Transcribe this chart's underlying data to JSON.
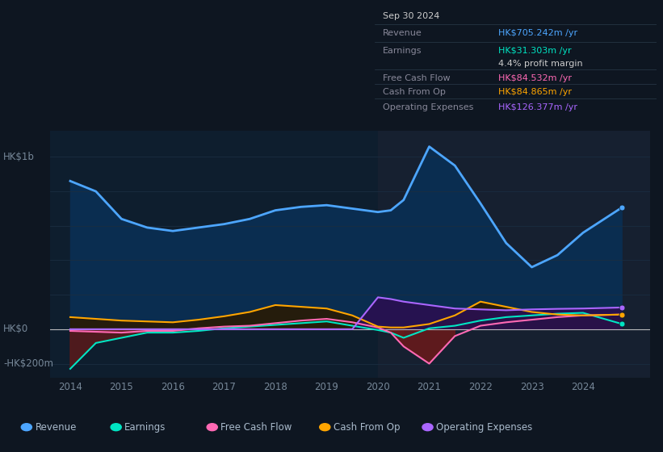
{
  "bg_color": "#0e1621",
  "plot_bg_color": "#0e1e2e",
  "years": [
    2014,
    2014.5,
    2015,
    2015.5,
    2016,
    2016.5,
    2017,
    2017.5,
    2018,
    2018.5,
    2019,
    2019.5,
    2020,
    2020.25,
    2020.5,
    2021,
    2021.5,
    2022,
    2022.5,
    2023,
    2023.5,
    2024,
    2024.75
  ],
  "revenue": [
    860,
    800,
    640,
    590,
    570,
    590,
    610,
    640,
    690,
    710,
    720,
    700,
    680,
    690,
    750,
    1060,
    950,
    730,
    500,
    360,
    430,
    560,
    705
  ],
  "earnings": [
    -230,
    -80,
    -50,
    -20,
    -20,
    -10,
    5,
    15,
    25,
    35,
    45,
    20,
    -5,
    -20,
    -50,
    5,
    20,
    50,
    70,
    80,
    90,
    95,
    31
  ],
  "free_cash_flow": [
    -10,
    -15,
    -20,
    -10,
    -10,
    5,
    15,
    20,
    35,
    50,
    60,
    40,
    10,
    -20,
    -100,
    -200,
    -40,
    20,
    40,
    55,
    70,
    80,
    85
  ],
  "cash_from_op": [
    70,
    60,
    50,
    45,
    40,
    55,
    75,
    100,
    140,
    130,
    120,
    80,
    15,
    10,
    10,
    30,
    80,
    160,
    130,
    100,
    85,
    80,
    85
  ],
  "operating_expenses": [
    0,
    0,
    0,
    0,
    0,
    0,
    0,
    0,
    0,
    0,
    0,
    0,
    185,
    175,
    160,
    140,
    120,
    115,
    110,
    115,
    118,
    120,
    126
  ],
  "info_box": {
    "date": "Sep 30 2024",
    "revenue_label": "Revenue",
    "revenue_val": "HK$705.242m",
    "earnings_label": "Earnings",
    "earnings_val": "HK$31.303m",
    "profit_margin": "4.4% profit margin",
    "fcf_label": "Free Cash Flow",
    "fcf_val": "HK$84.532m",
    "cash_op_label": "Cash From Op",
    "cash_op_val": "HK$84.865m",
    "op_exp_label": "Operating Expenses",
    "op_exp_val": "HK$126.377m",
    "revenue_color": "#4da6ff",
    "earnings_color": "#00e5c3",
    "fcf_color": "#ff69b4",
    "cash_op_color": "#ffa500",
    "op_exp_color": "#aa66ff",
    "label_color": "#888899",
    "date_color": "#cccccc",
    "margin_color": "#cccccc",
    "box_bg": "#070d14",
    "box_border": "#2a3a4a"
  },
  "legend": [
    {
      "label": "Revenue",
      "color": "#4da6ff"
    },
    {
      "label": "Earnings",
      "color": "#00e5c3"
    },
    {
      "label": "Free Cash Flow",
      "color": "#ff69b4"
    },
    {
      "label": "Cash From Op",
      "color": "#ffa500"
    },
    {
      "label": "Operating Expenses",
      "color": "#aa66ff"
    }
  ],
  "revenue_color": "#4da6ff",
  "revenue_fill": "#0a2d50",
  "earnings_color": "#00e5c3",
  "earnings_fill_neg": "#5a1a1a",
  "fcf_color": "#ff69b4",
  "fcf_fill_neg": "#6b1a1a",
  "fcf_fill_pos": "#1a3a2a",
  "cash_op_color": "#ffa500",
  "cash_op_fill": "#2a1a00",
  "op_exp_color": "#aa66ff",
  "op_exp_fill": "#2a1050",
  "shade_color": "#162030",
  "shade_start": 2020,
  "shade_end": 2025.5,
  "grid_color": "#1a2d40",
  "zero_line_color": "#cccccc",
  "xlim": [
    2013.6,
    2025.3
  ],
  "ylim": [
    -280,
    1150
  ],
  "yticks": [
    1000,
    800,
    600,
    400,
    200,
    0,
    -200
  ],
  "xticks": [
    2014,
    2015,
    2016,
    2017,
    2018,
    2019,
    2020,
    2021,
    2022,
    2023,
    2024
  ],
  "tick_color": "#778899",
  "hk1b_y": 1000,
  "hk0_y": 0,
  "hkneg200_y": -200
}
